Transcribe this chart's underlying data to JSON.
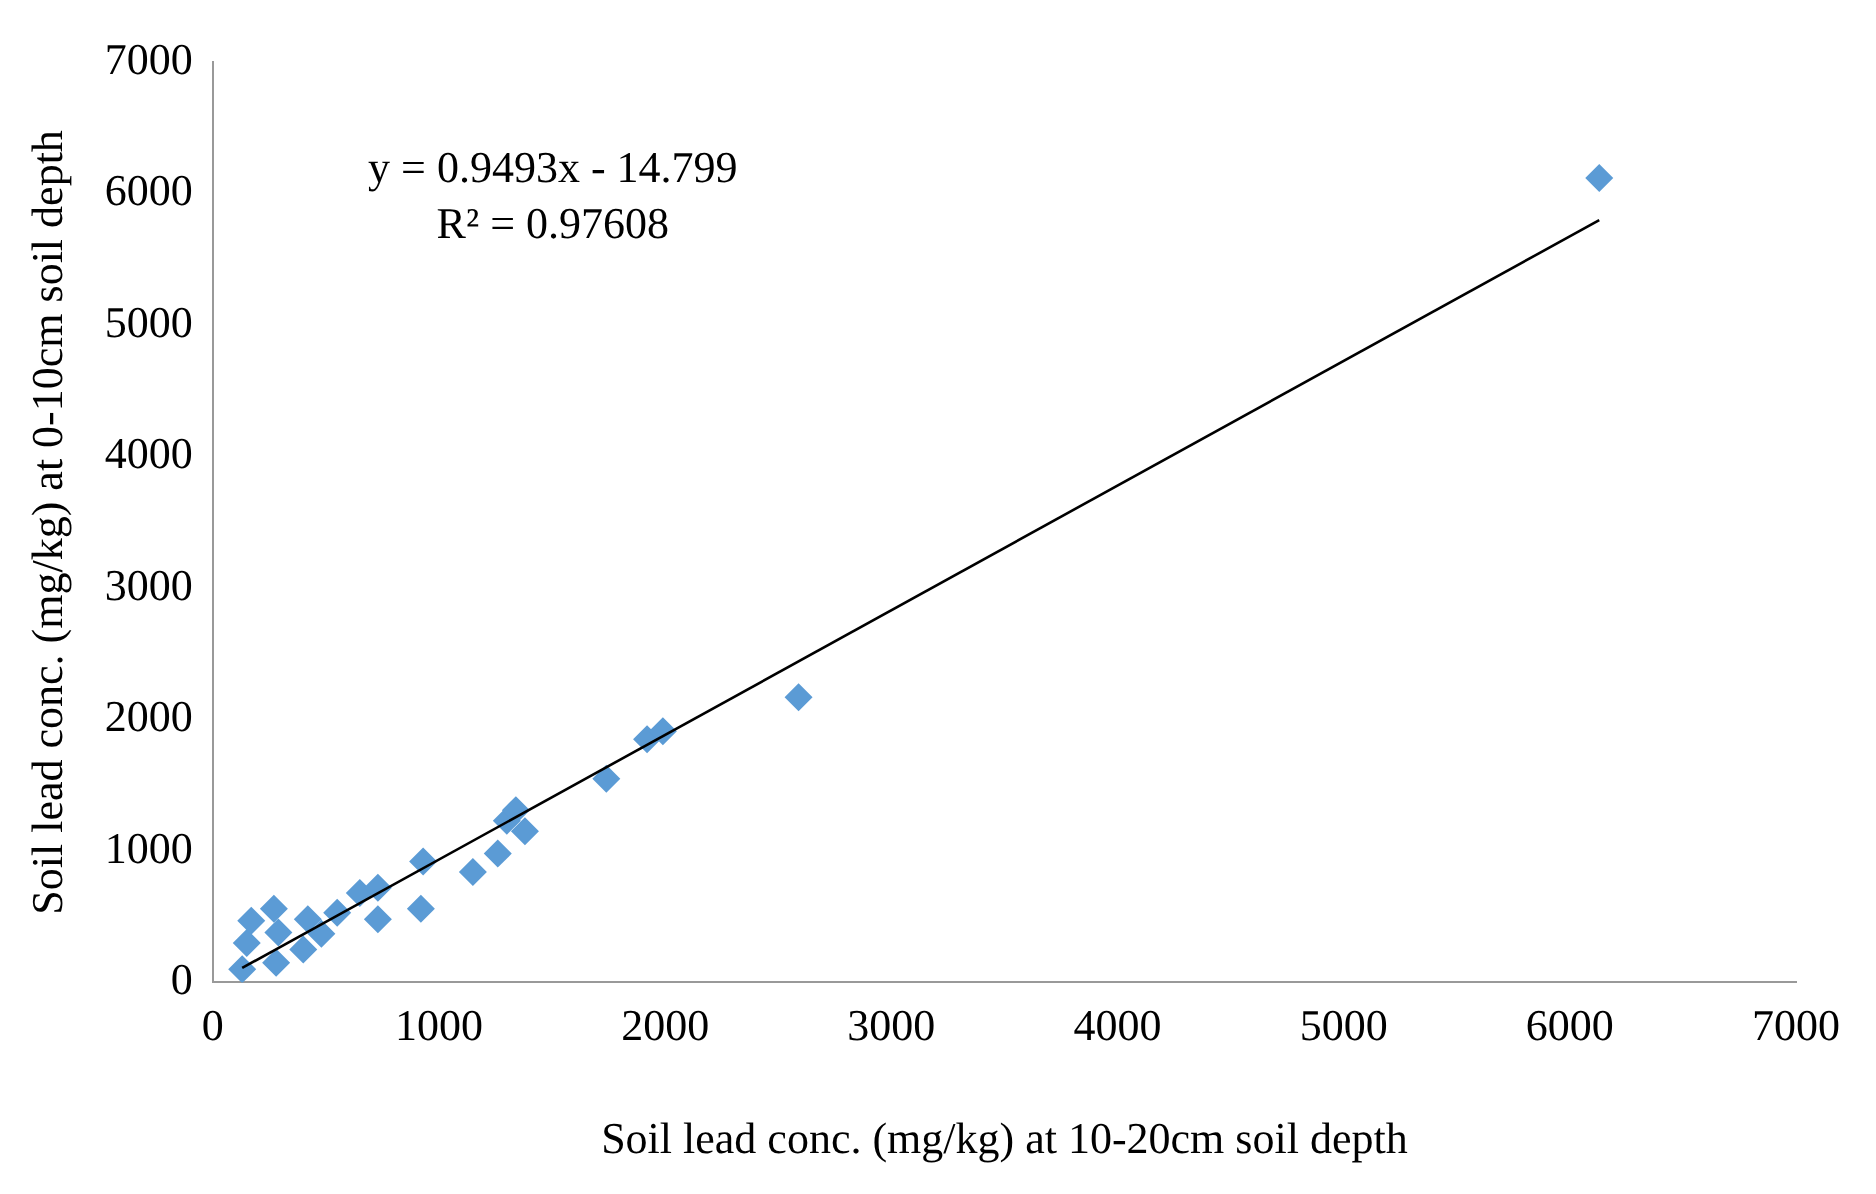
{
  "chart_data": {
    "type": "scatter",
    "xlabel": "Soil lead conc. (mg/kg) at 10-20cm soil depth",
    "ylabel": "Soil lead conc. (mg/kg) at 0-10cm soil depth",
    "annotations": [
      "y = 0.9493x - 14.799",
      "R² = 0.97608"
    ],
    "xlim": [
      0,
      7000
    ],
    "ylim": [
      0,
      7000
    ],
    "xticks": [
      0,
      1000,
      2000,
      3000,
      4000,
      5000,
      6000,
      7000
    ],
    "yticks": [
      0,
      1000,
      2000,
      3000,
      4000,
      5000,
      6000,
      7000
    ],
    "grid": false,
    "legend": false,
    "marker": "diamond",
    "series": [
      {
        "type": "scatter",
        "color": "#5b9bd5",
        "x": [
          130,
          150,
          170,
          280,
          290,
          270,
          400,
          420,
          480,
          550,
          650,
          730,
          730,
          920,
          930,
          1150,
          1260,
          1300,
          1340,
          1380,
          1740,
          1920,
          1990,
          2590,
          6130
        ],
        "values": [
          100,
          300,
          470,
          150,
          380,
          560,
          250,
          480,
          370,
          530,
          680,
          480,
          720,
          560,
          920,
          840,
          980,
          1230,
          1310,
          1150,
          1550,
          1850,
          1910,
          2170,
          6120
        ]
      },
      {
        "type": "line",
        "color": "#000000",
        "marker": "none",
        "x": [
          130,
          6130
        ],
        "values": [
          110,
          5800
        ]
      }
    ]
  }
}
